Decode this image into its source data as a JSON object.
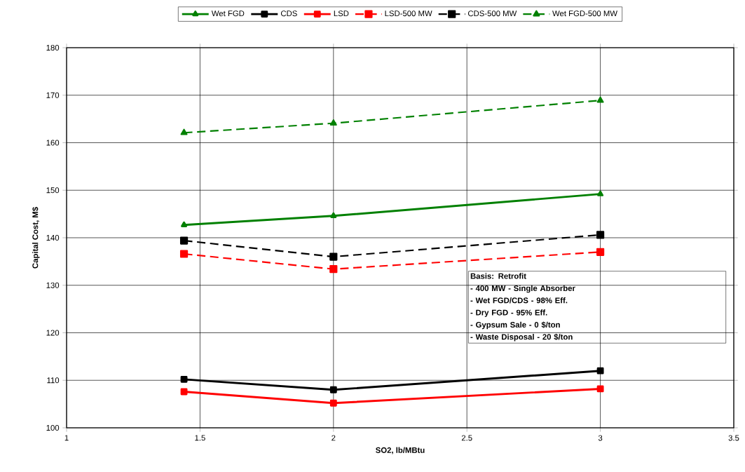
{
  "chart_data": {
    "type": "line",
    "xlabel": "SO2, lb/MBtu",
    "ylabel": "Capital Cost, M$",
    "x": [
      1.44,
      2,
      3
    ],
    "xlim": [
      1,
      3.5
    ],
    "xticks": [
      1,
      1.5,
      2,
      2.5,
      3,
      3.5
    ],
    "ylim": [
      100,
      180
    ],
    "yticks": [
      100,
      110,
      120,
      130,
      140,
      150,
      160,
      170,
      180
    ],
    "grid": true,
    "legend": "top",
    "series": [
      {
        "name": "Wet FGD",
        "color": "#008000",
        "marker": "triangle",
        "line_style": "solid",
        "values": [
          142.7,
          144.6,
          149.2
        ]
      },
      {
        "name": "CDS",
        "color": "#000000",
        "marker": "square",
        "line_style": "solid",
        "values": [
          110.2,
          108.0,
          112.0
        ]
      },
      {
        "name": "LSD",
        "color": "#ff0000",
        "marker": "square",
        "line_style": "solid",
        "values": [
          107.6,
          105.2,
          108.2
        ]
      },
      {
        "name": "LSD-500 MW",
        "color": "#ff0000",
        "marker": "square",
        "line_style": "dashed",
        "values": [
          136.6,
          133.4,
          137.0
        ]
      },
      {
        "name": "CDS-500 MW",
        "color": "#000000",
        "marker": "square",
        "line_style": "dashed",
        "values": [
          139.4,
          136.0,
          140.6
        ]
      },
      {
        "name": "Wet FGD-500 MW",
        "color": "#008000",
        "marker": "triangle",
        "line_style": "dashed",
        "values": [
          162.1,
          164.1,
          168.9
        ]
      }
    ],
    "annotations": [
      "Basis: Retrofit",
      "- 400 MW - Single Absorber",
      "- Wet FGD/CDS - 98% Eff.",
      "-  Dry FGD - 95% Eff.",
      "-  Gypsum Sale - 0 $/ton",
      "-  Waste Disposal - 20 $/ton"
    ]
  }
}
